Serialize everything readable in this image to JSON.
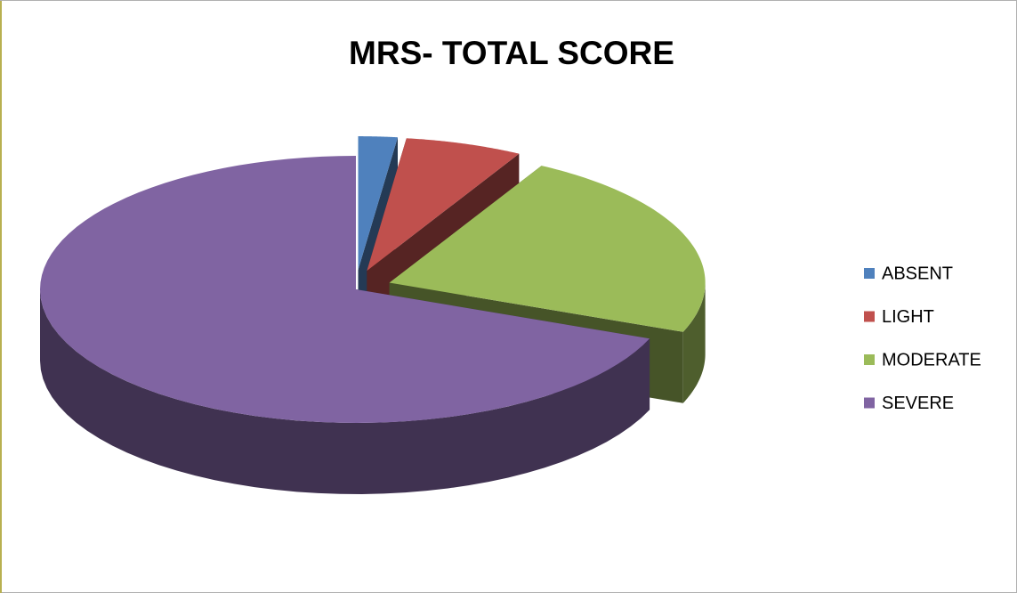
{
  "chart_data": {
    "type": "pie",
    "title": "MRS- TOTAL SCORE",
    "categories": [
      "ABSENT",
      "LIGHT",
      "MODERATE",
      "SEVERE"
    ],
    "values": [
      2,
      6,
      23,
      69
    ],
    "colors": [
      "#4f81bd",
      "#c0504d",
      "#9bbb59",
      "#8064a2"
    ],
    "legend": "right"
  }
}
